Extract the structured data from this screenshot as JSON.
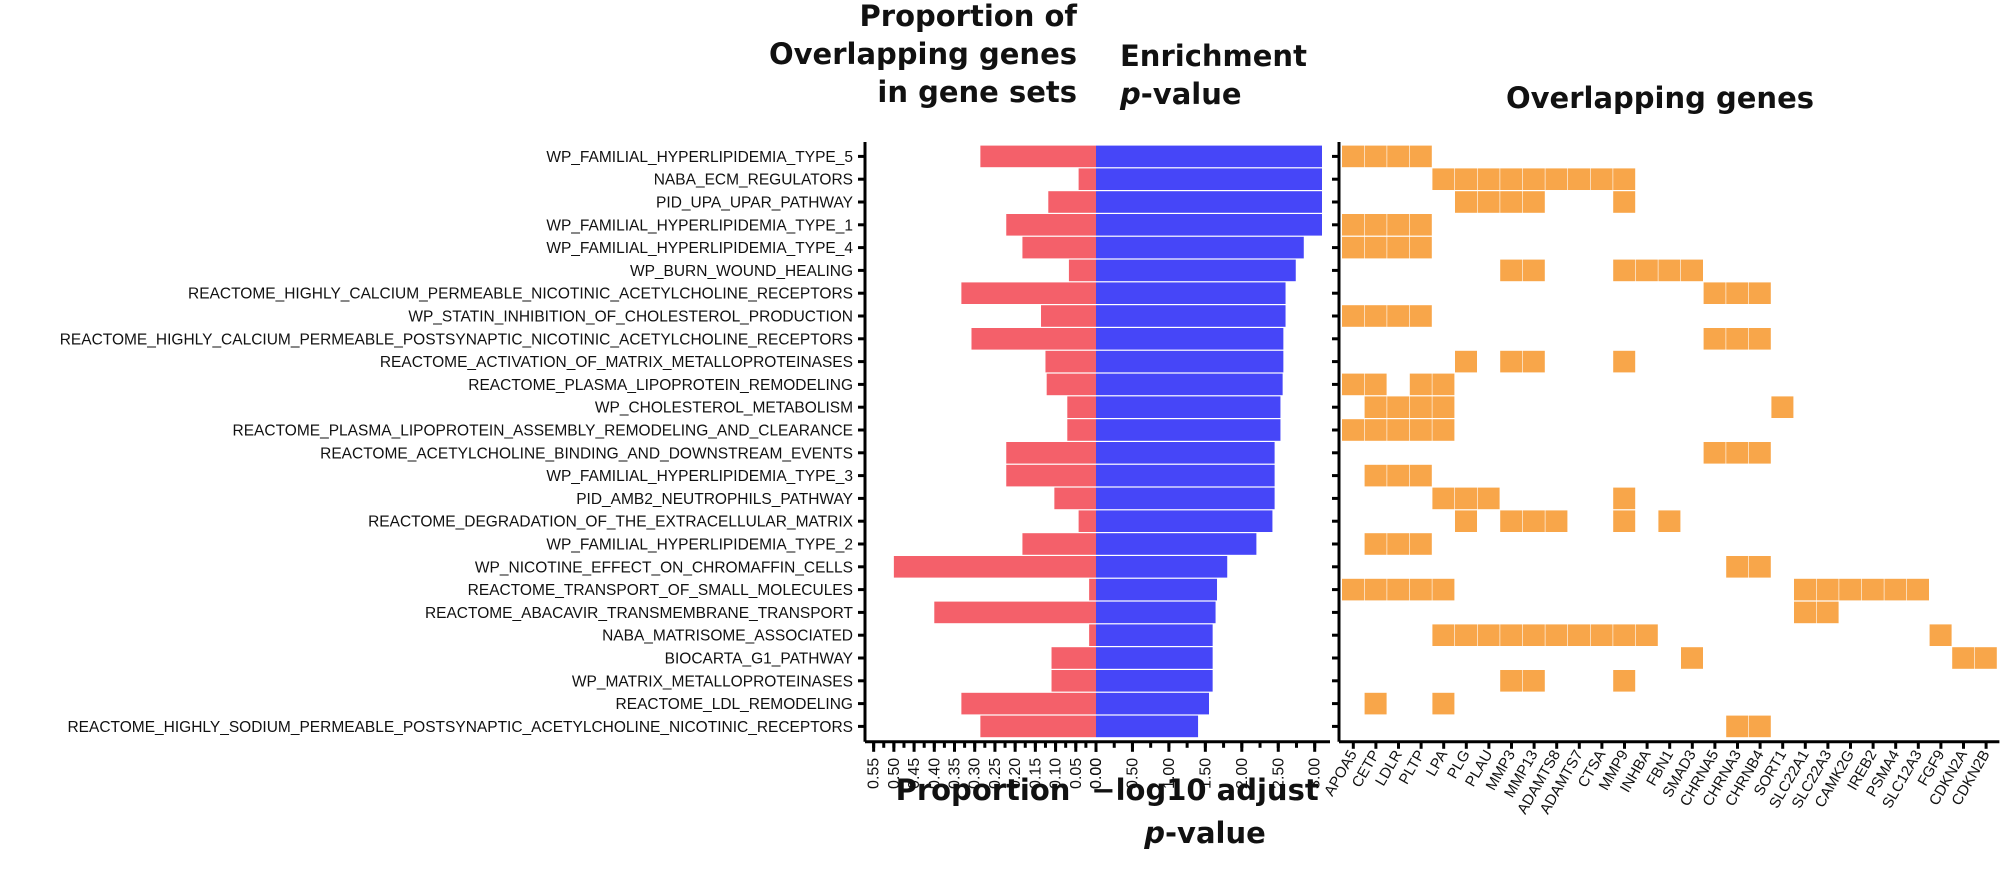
{
  "chart_data": {
    "type": "bar",
    "pathways": [
      "WP_FAMILIAL_HYPERLIPIDEMIA_TYPE_5",
      "NABA_ECM_REGULATORS",
      "PID_UPA_UPAR_PATHWAY",
      "WP_FAMILIAL_HYPERLIPIDEMIA_TYPE_1",
      "WP_FAMILIAL_HYPERLIPIDEMIA_TYPE_4",
      "WP_BURN_WOUND_HEALING",
      "REACTOME_HIGHLY_CALCIUM_PERMEABLE_NICOTINIC_ACETYLCHOLINE_RECEPTORS",
      "WP_STATIN_INHIBITION_OF_CHOLESTEROL_PRODUCTION",
      "REACTOME_HIGHLY_CALCIUM_PERMEABLE_POSTSYNAPTIC_NICOTINIC_ACETYLCHOLINE_RECEPTORS",
      "REACTOME_ACTIVATION_OF_MATRIX_METALLOPROTEINASES",
      "REACTOME_PLASMA_LIPOPROTEIN_REMODELING",
      "WP_CHOLESTEROL_METABOLISM",
      "REACTOME_PLASMA_LIPOPROTEIN_ASSEMBLY_REMODELING_AND_CLEARANCE",
      "REACTOME_ACETYLCHOLINE_BINDING_AND_DOWNSTREAM_EVENTS",
      "WP_FAMILIAL_HYPERLIPIDEMIA_TYPE_3",
      "PID_AMB2_NEUTROPHILS_PATHWAY",
      "REACTOME_DEGRADATION_OF_THE_EXTRACELLULAR_MATRIX",
      "WP_FAMILIAL_HYPERLIPIDEMIA_TYPE_2",
      "WP_NICOTINE_EFFECT_ON_CHROMAFFIN_CELLS",
      "REACTOME_TRANSPORT_OF_SMALL_MOLECULES",
      "REACTOME_ABACAVIR_TRANSMEMBRANE_TRANSPORT",
      "NABA_MATRISOME_ASSOCIATED",
      "BIOCARTA_G1_PATHWAY",
      "WP_MATRIX_METALLOPROTEINASES",
      "REACTOME_LDL_REMODELING",
      "REACTOME_HIGHLY_SODIUM_PERMEABLE_POSTSYNAPTIC_ACETYLCHOLINE_NICOTINIC_RECEPTORS"
    ],
    "proportion": {
      "title": [
        "Proportion of",
        "Overlapping genes",
        "in gene sets"
      ],
      "xlabel": "Proportion",
      "ticks": [
        "0.55",
        "0.50",
        "0.45",
        "0.40",
        "0.35",
        "0.30",
        "0.25",
        "0.20",
        "0.15",
        "0.10",
        "0.05",
        "0.00"
      ],
      "xlim": [
        0,
        0.5714
      ],
      "color": "#f4606a",
      "values": [
        0.286,
        0.043,
        0.118,
        0.222,
        0.182,
        0.067,
        0.333,
        0.136,
        0.308,
        0.125,
        0.122,
        0.071,
        0.071,
        0.222,
        0.222,
        0.103,
        0.043,
        0.182,
        0.5,
        0.017,
        0.4,
        0.017,
        0.11,
        0.11,
        0.333,
        0.286
      ]
    },
    "enrichment": {
      "title": [
        "Enrichment",
        "p-value"
      ],
      "xlabel": [
        "−log10 adjust",
        "p-value"
      ],
      "ticks": [
        "0.00",
        "0.50",
        "1.00",
        "1.50",
        "2.00",
        "2.50",
        "3.00"
      ],
      "xlim": [
        0,
        3.1
      ],
      "color": "#4646f8",
      "values": [
        3.1,
        3.1,
        3.1,
        3.1,
        2.85,
        2.74,
        2.6,
        2.6,
        2.57,
        2.57,
        2.56,
        2.53,
        2.53,
        2.45,
        2.45,
        2.45,
        2.42,
        2.2,
        1.8,
        1.66,
        1.64,
        1.6,
        1.6,
        1.6,
        1.55,
        1.4
      ]
    },
    "genes": {
      "title": "Overlapping genes",
      "color": "#f8a64a",
      "labels": [
        "APOA5",
        "CETP",
        "LDLR",
        "PLTP",
        "LPA",
        "PLG",
        "PLAU",
        "MMP3",
        "MMP13",
        "ADAMTS8",
        "ADAMTS7",
        "CTSA",
        "MMP9",
        "INHBA",
        "FBN1",
        "SMAD3",
        "CHRNA5",
        "CHRNA3",
        "CHRNB4",
        "SORT1",
        "SLC22A1",
        "SLC22A3",
        "CAMK2G",
        "IREB2",
        "PSMA4",
        "SLC12A3",
        "FGF9",
        "CDKN2A",
        "CDKN2B"
      ],
      "membership": [
        [
          0,
          1,
          2,
          3
        ],
        [
          4,
          5,
          6,
          7,
          8,
          9,
          10,
          11,
          12
        ],
        [
          5,
          6,
          7,
          8,
          12
        ],
        [
          0,
          1,
          2,
          3
        ],
        [
          0,
          1,
          2,
          3
        ],
        [
          7,
          8,
          12,
          13,
          14,
          15
        ],
        [
          16,
          17,
          18
        ],
        [
          0,
          1,
          2,
          3
        ],
        [
          16,
          17,
          18
        ],
        [
          5,
          7,
          8,
          12
        ],
        [
          0,
          1,
          3,
          4
        ],
        [
          1,
          2,
          3,
          4,
          19
        ],
        [
          0,
          1,
          2,
          3,
          4
        ],
        [
          16,
          17,
          18
        ],
        [
          1,
          2,
          3
        ],
        [
          4,
          5,
          6,
          12
        ],
        [
          5,
          7,
          8,
          9,
          12,
          14
        ],
        [
          1,
          2,
          3
        ],
        [
          17,
          18
        ],
        [
          0,
          1,
          2,
          3,
          4,
          20,
          21,
          22,
          23,
          24,
          25
        ],
        [
          20,
          21
        ],
        [
          4,
          5,
          6,
          7,
          8,
          9,
          10,
          11,
          12,
          13,
          26
        ],
        [
          15,
          27,
          28
        ],
        [
          7,
          8,
          12
        ],
        [
          1,
          4
        ],
        [
          17,
          18
        ]
      ]
    }
  }
}
